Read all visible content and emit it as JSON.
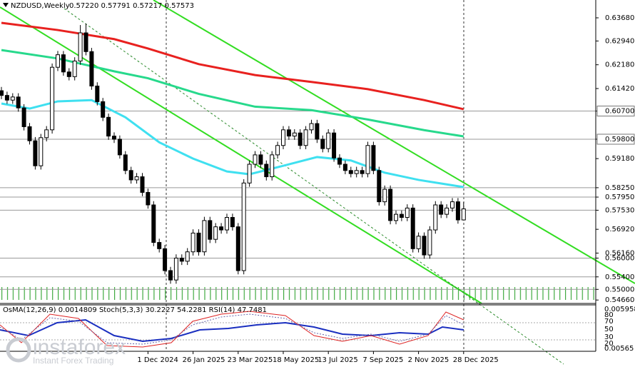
{
  "chart_data": {
    "type": "candlestick",
    "symbol": "NZDUSD,Weekly",
    "ohlc_text": "0.57220 0.57791 0.57217 0.57573",
    "up_color": "#ffffff",
    "down_color": "#000000",
    "categories": [
      null,
      null,
      null,
      null,
      null,
      null,
      null,
      null,
      null,
      null,
      null,
      null,
      null,
      null,
      null,
      null,
      null,
      null,
      null,
      null,
      null,
      null,
      null,
      null,
      null,
      null,
      "1 Dec 2024",
      null,
      null,
      null,
      null,
      null,
      null,
      null,
      "26 Jan 2025",
      null,
      null,
      null,
      null,
      null,
      null,
      null,
      "23 Mar 2025",
      null,
      null,
      null,
      null,
      null,
      null,
      null,
      "18 May 2025",
      null,
      null,
      null,
      null,
      null,
      null,
      null,
      "13 Jul 2025",
      null,
      null,
      null,
      null,
      null,
      null,
      null,
      "7 Sep 2025",
      null,
      null,
      null,
      null,
      null,
      null,
      null,
      "2 Nov 2025",
      null,
      null,
      null,
      null,
      null,
      null,
      null,
      "28 Dec 2025"
    ],
    "open": [
      0.6135,
      0.612,
      0.6105,
      0.6115,
      0.608,
      0.602,
      0.5975,
      0.5895,
      0.5985,
      0.601,
      0.621,
      0.625,
      0.6195,
      0.618,
      0.623,
      0.632,
      0.626,
      0.615,
      0.61,
      0.605,
      0.599,
      0.598,
      0.593,
      0.588,
      0.585,
      0.586,
      0.581,
      0.577,
      0.565,
      0.563,
      0.556,
      0.553,
      0.56,
      0.559,
      0.562,
      0.568,
      0.562,
      0.572,
      0.566,
      0.57,
      0.569,
      0.573,
      0.57,
      0.556,
      0.584,
      0.59,
      0.593,
      0.59,
      0.586,
      0.593,
      0.596,
      0.601,
      0.599,
      0.6,
      0.596,
      0.601,
      0.603,
      0.598,
      0.595,
      0.6,
      0.592,
      0.59,
      0.588,
      0.587,
      0.588,
      0.587,
      0.596,
      0.588,
      0.578,
      0.582,
      0.572,
      0.574,
      0.573,
      0.576,
      0.563,
      0.567,
      0.561,
      0.569,
      0.577,
      0.574,
      0.576,
      0.578,
      0.5722
    ],
    "high": [
      0.6147,
      0.6132,
      0.6127,
      0.6127,
      0.6092,
      0.6032,
      0.5987,
      0.5997,
      0.6022,
      0.6222,
      0.6262,
      0.6262,
      0.6207,
      0.6242,
      0.6345,
      0.635,
      0.6272,
      0.6162,
      0.6112,
      0.6062,
      0.6002,
      0.5992,
      0.5942,
      0.5892,
      0.5872,
      0.5872,
      0.5822,
      0.5782,
      0.5662,
      0.5642,
      0.5572,
      0.5612,
      0.5612,
      0.5632,
      0.5692,
      0.5692,
      0.5732,
      0.5732,
      0.5712,
      0.5712,
      0.5742,
      0.5742,
      0.5712,
      0.5852,
      0.5912,
      0.5942,
      0.5942,
      0.5912,
      0.5942,
      0.5972,
      0.6022,
      0.6022,
      0.6012,
      0.6012,
      0.6022,
      0.6042,
      0.6042,
      0.5992,
      0.6012,
      0.6012,
      0.5932,
      0.5912,
      0.5892,
      0.5892,
      0.5892,
      0.5972,
      0.5972,
      0.5892,
      0.5832,
      0.5832,
      0.5752,
      0.5752,
      0.5772,
      0.5772,
      0.5682,
      0.5682,
      0.5702,
      0.5782,
      0.5782,
      0.5772,
      0.5792,
      0.5792,
      0.57791
    ],
    "low": [
      0.6108,
      0.6093,
      0.6093,
      0.6068,
      0.6008,
      0.5963,
      0.5883,
      0.5883,
      0.5973,
      0.5998,
      0.6198,
      0.6183,
      0.6168,
      0.6168,
      0.6218,
      0.6248,
      0.6138,
      0.6088,
      0.6038,
      0.5978,
      0.5968,
      0.5918,
      0.5868,
      0.5838,
      0.5838,
      0.5798,
      0.5758,
      0.5638,
      0.5618,
      0.5548,
      0.5518,
      0.5518,
      0.5578,
      0.5578,
      0.5608,
      0.5608,
      0.5608,
      0.5648,
      0.5648,
      0.5678,
      0.5678,
      0.5688,
      0.5548,
      0.5548,
      0.5828,
      0.5888,
      0.5888,
      0.5848,
      0.5848,
      0.5918,
      0.5948,
      0.5978,
      0.5978,
      0.5948,
      0.5948,
      0.5998,
      0.5968,
      0.5938,
      0.5938,
      0.5908,
      0.5888,
      0.5868,
      0.5858,
      0.5858,
      0.5858,
      0.5858,
      0.5868,
      0.5768,
      0.5768,
      0.5708,
      0.5708,
      0.5718,
      0.5718,
      0.5618,
      0.5618,
      0.5598,
      0.5598,
      0.5678,
      0.5728,
      0.5728,
      0.5748,
      0.571,
      0.57217
    ],
    "close": [
      0.612,
      0.6105,
      0.6115,
      0.608,
      0.602,
      0.5975,
      0.5895,
      0.5985,
      0.601,
      0.621,
      0.625,
      0.6195,
      0.618,
      0.623,
      0.632,
      0.626,
      0.615,
      0.61,
      0.605,
      0.599,
      0.598,
      0.593,
      0.588,
      0.585,
      0.586,
      0.581,
      0.577,
      0.565,
      0.563,
      0.556,
      0.553,
      0.56,
      0.559,
      0.562,
      0.568,
      0.562,
      0.572,
      0.566,
      0.57,
      0.569,
      0.573,
      0.57,
      0.556,
      0.584,
      0.59,
      0.593,
      0.59,
      0.586,
      0.593,
      0.596,
      0.601,
      0.599,
      0.6,
      0.596,
      0.601,
      0.603,
      0.598,
      0.595,
      0.6,
      0.592,
      0.59,
      0.588,
      0.587,
      0.588,
      0.587,
      0.596,
      0.588,
      0.578,
      0.582,
      0.572,
      0.574,
      0.573,
      0.576,
      0.563,
      0.567,
      0.561,
      0.569,
      0.577,
      0.574,
      0.576,
      0.578,
      0.5722,
      0.57573
    ],
    "overlays": [
      {
        "color": "#e8211f",
        "x": [
          0,
          10,
          20,
          26,
          35,
          45,
          55,
          65,
          75,
          82
        ],
        "values": [
          0.6352,
          0.6329,
          0.63,
          0.627,
          0.622,
          0.6185,
          0.6163,
          0.614,
          0.6105,
          0.6076
        ]
      },
      {
        "color": "#27d98c",
        "x": [
          0,
          10,
          20,
          26,
          35,
          45,
          55,
          65,
          75,
          82
        ],
        "values": [
          0.6265,
          0.6238,
          0.6197,
          0.6175,
          0.6125,
          0.6084,
          0.6073,
          0.6043,
          0.6009,
          0.5989
        ]
      },
      {
        "color": "#3fe0f0",
        "x": [
          0,
          5,
          10,
          16,
          22,
          28,
          34,
          40,
          44,
          50,
          56,
          62,
          68,
          74,
          82
        ],
        "values": [
          0.6094,
          0.6078,
          0.6101,
          0.6105,
          0.605,
          0.597,
          0.5918,
          0.5877,
          0.5868,
          0.5895,
          0.5923,
          0.5912,
          0.5873,
          0.585,
          0.5827
        ]
      }
    ],
    "ylim": [
      0.5455,
      0.6425
    ],
    "yticks": [
      {
        "value": 0.6368,
        "label": "0.63680"
      },
      {
        "value": 0.6294,
        "label": "0.62940"
      },
      {
        "value": 0.6218,
        "label": "0.62180"
      },
      {
        "value": 0.6142,
        "label": "0.61420"
      },
      {
        "value": 0.607,
        "label": "0.60700",
        "level": true,
        "boxed": true
      },
      {
        "value": 0.598,
        "label": "0.59800",
        "level": true,
        "boxed": true
      },
      {
        "value": 0.5918,
        "label": "0.59180"
      },
      {
        "value": 0.5825,
        "label": "0.58250",
        "level": true
      },
      {
        "value": 0.5795,
        "label": "0.57950",
        "level": true
      },
      {
        "value": 0.5753,
        "label": "0.57530",
        "level": true
      },
      {
        "value": 0.5692,
        "label": "0.56920"
      },
      {
        "value": 0.5616,
        "label": "0.56160"
      },
      {
        "value": 0.56,
        "label": "0.56000",
        "level": true
      },
      {
        "value": 0.554,
        "label": "0.55400",
        "level": true
      },
      {
        "value": 0.55,
        "label": "0.55000",
        "level": true
      },
      {
        "value": 0.5466,
        "label": "0.54660"
      }
    ],
    "indicator_text": "OsMA(12,26,9) 0.0014809 Stoch(5,3,3) 30.2227 54.2281 RSI(14) 47.7481",
    "indicator_scale": [
      "0.005958",
      "80",
      "70",
      "50",
      "30",
      "20",
      "0.00565"
    ],
    "watermark": "instaforex",
    "watermark_sub": "Instant Forex Trading"
  }
}
